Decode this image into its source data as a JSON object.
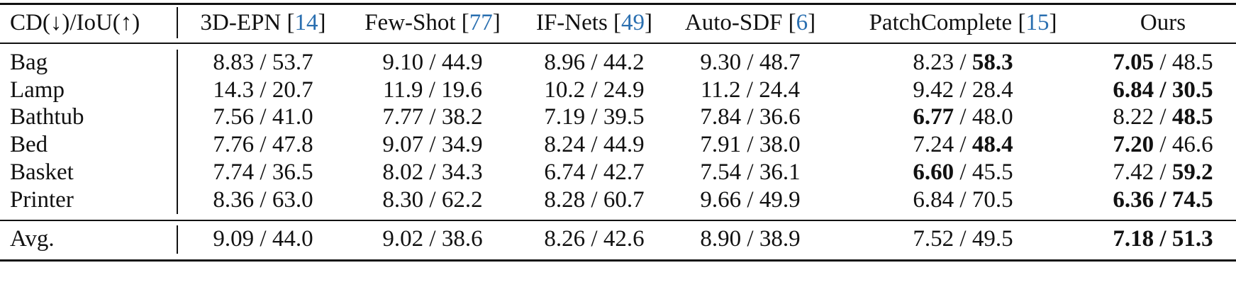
{
  "header": {
    "metric": "CD(↓)/IoU(↑)",
    "columns": [
      {
        "name": "3D-EPN [",
        "cite": "14",
        "close": "]"
      },
      {
        "name": "Few-Shot [",
        "cite": "77",
        "close": "]"
      },
      {
        "name": "IF-Nets [",
        "cite": "49",
        "close": "]"
      },
      {
        "name": "Auto-SDF [",
        "cite": "6",
        "close": "]"
      },
      {
        "name": "PatchComplete [",
        "cite": "15",
        "close": "]"
      },
      {
        "name": "Ours",
        "cite": "",
        "close": ""
      }
    ]
  },
  "rows": [
    {
      "label": "Bag",
      "cells": [
        {
          "cd": "8.83",
          "iou": "53.7"
        },
        {
          "cd": "9.10",
          "iou": "44.9"
        },
        {
          "cd": "8.96",
          "iou": "44.2"
        },
        {
          "cd": "9.30",
          "iou": "48.7"
        },
        {
          "cd": "8.23",
          "iou": "58.3",
          "iou_bold": true
        },
        {
          "cd": "7.05",
          "iou": "48.5",
          "cd_bold": true
        }
      ]
    },
    {
      "label": "Lamp",
      "cells": [
        {
          "cd": "14.3",
          "iou": "20.7"
        },
        {
          "cd": "11.9",
          "iou": "19.6"
        },
        {
          "cd": "10.2",
          "iou": "24.9"
        },
        {
          "cd": "11.2",
          "iou": "24.4"
        },
        {
          "cd": "9.42",
          "iou": "28.4"
        },
        {
          "cd": "6.84",
          "iou": "30.5",
          "cd_bold": true,
          "iou_bold": true,
          "sep_bold": true
        }
      ]
    },
    {
      "label": "Bathtub",
      "cells": [
        {
          "cd": "7.56",
          "iou": "41.0"
        },
        {
          "cd": "7.77",
          "iou": "38.2"
        },
        {
          "cd": "7.19",
          "iou": "39.5"
        },
        {
          "cd": "7.84",
          "iou": "36.6"
        },
        {
          "cd": "6.77",
          "iou": "48.0",
          "cd_bold": true
        },
        {
          "cd": "8.22",
          "iou": "48.5",
          "iou_bold": true
        }
      ]
    },
    {
      "label": "Bed",
      "cells": [
        {
          "cd": "7.76",
          "iou": "47.8"
        },
        {
          "cd": "9.07",
          "iou": "34.9"
        },
        {
          "cd": "8.24",
          "iou": "44.9"
        },
        {
          "cd": "7.91",
          "iou": "38.0"
        },
        {
          "cd": "7.24",
          "iou": "48.4",
          "iou_bold": true
        },
        {
          "cd": "7.20",
          "iou": "46.6",
          "cd_bold": true
        }
      ]
    },
    {
      "label": "Basket",
      "cells": [
        {
          "cd": "7.74",
          "iou": "36.5"
        },
        {
          "cd": "8.02",
          "iou": "34.3"
        },
        {
          "cd": "6.74",
          "iou": "42.7"
        },
        {
          "cd": "7.54",
          "iou": "36.1"
        },
        {
          "cd": "6.60",
          "iou": "45.5",
          "cd_bold": true
        },
        {
          "cd": "7.42",
          "iou": "59.2",
          "iou_bold": true
        }
      ]
    },
    {
      "label": "Printer",
      "cells": [
        {
          "cd": "8.36",
          "iou": "63.0"
        },
        {
          "cd": "8.30",
          "iou": "62.2"
        },
        {
          "cd": "8.28",
          "iou": "60.7"
        },
        {
          "cd": "9.66",
          "iou": "49.9"
        },
        {
          "cd": "6.84",
          "iou": "70.5"
        },
        {
          "cd": "6.36",
          "iou": "74.5",
          "cd_bold": true,
          "iou_bold": true,
          "sep_bold": true
        }
      ]
    }
  ],
  "avg": {
    "label": "Avg.",
    "cells": [
      {
        "cd": "9.09",
        "iou": "44.0"
      },
      {
        "cd": "9.02",
        "iou": "38.6"
      },
      {
        "cd": "8.26",
        "iou": "42.6"
      },
      {
        "cd": "8.90",
        "iou": "38.9"
      },
      {
        "cd": "7.52",
        "iou": "49.5"
      },
      {
        "cd": "7.18",
        "iou": "51.3",
        "cd_bold": true,
        "iou_bold": true,
        "sep_bold": true
      }
    ]
  }
}
